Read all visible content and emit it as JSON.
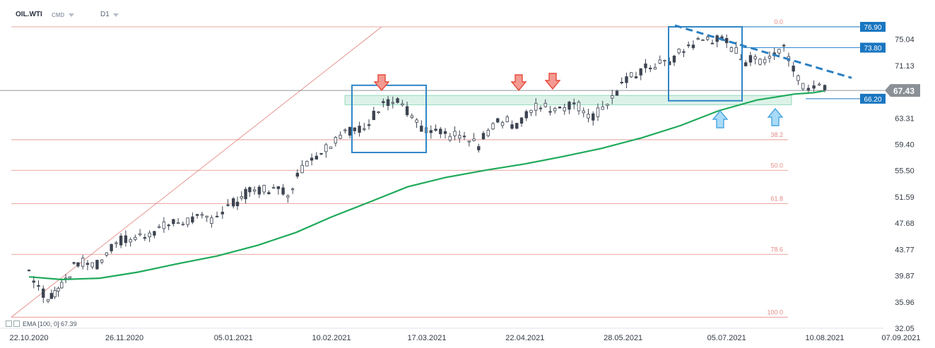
{
  "header": {
    "symbol": "OIL.WTI",
    "market": "CMD",
    "timeframe": "D1"
  },
  "indicator_legend": {
    "label": "EMA [100, 0]",
    "value": "67.39"
  },
  "colors": {
    "candle": "#3d4451",
    "ema": "#1eaa5a",
    "fib": "#e38b85",
    "box": "#2f86c6",
    "trend": "#2a7fc1",
    "arrow_down": "#e74a3b",
    "arrow_up": "#7ec3f1",
    "support_zone": "#bfe8d6",
    "price_tag": "#8a9096",
    "level_tag": "#1a76c0"
  },
  "chart_data": {
    "type": "candlestick",
    "title": "",
    "xlabel": "",
    "ylabel": "",
    "x_ticks": [
      "22.10.2020",
      "26.11.2020",
      "05.01.2021",
      "10.02.2021",
      "17.03.2021",
      "22.04.2021",
      "28.05.2021",
      "05.07.2021",
      "10.08.2021",
      "07.09.2021"
    ],
    "y_ticks": [
      75.04,
      71.13,
      67.22,
      63.31,
      59.4,
      55.5,
      51.59,
      47.68,
      43.77,
      39.87,
      35.96,
      32.05
    ],
    "ylim": [
      32.05,
      78.0
    ],
    "grid": false,
    "current_price": 67.43,
    "level_tags": [
      76.9,
      73.8,
      66.2
    ],
    "fib_levels": [
      {
        "label": "0.0",
        "value": 76.9
      },
      {
        "label": "38.2",
        "value": 60.1
      },
      {
        "label": "50.0",
        "value": 55.55
      },
      {
        "label": "61.8",
        "value": 50.6
      },
      {
        "label": "78.6",
        "value": 43.05
      },
      {
        "label": "100.0",
        "value": 33.7
      }
    ],
    "ema_series": {
      "name": "EMA [100, 0]",
      "points": [
        [
          "22.10.2020",
          39.7
        ],
        [
          "03.11.2020",
          39.3
        ],
        [
          "17.11.2020",
          39.5
        ],
        [
          "01.12.2020",
          40.4
        ],
        [
          "15.12.2020",
          41.6
        ],
        [
          "30.12.2020",
          42.8
        ],
        [
          "14.01.2021",
          44.4
        ],
        [
          "28.01.2021",
          46.3
        ],
        [
          "10.02.2021",
          48.6
        ],
        [
          "25.02.2021",
          51.0
        ],
        [
          "10.03.2021",
          53.1
        ],
        [
          "24.03.2021",
          54.5
        ],
        [
          "08.04.2021",
          55.6
        ],
        [
          "22.04.2021",
          56.5
        ],
        [
          "06.05.2021",
          57.6
        ],
        [
          "20.05.2021",
          58.8
        ],
        [
          "04.06.2021",
          60.4
        ],
        [
          "18.06.2021",
          62.2
        ],
        [
          "02.07.2021",
          64.4
        ],
        [
          "16.07.2021",
          66.0
        ],
        [
          "30.07.2021",
          66.9
        ],
        [
          "06.08.2021",
          67.1
        ],
        [
          "10.08.2021",
          67.39
        ]
      ]
    },
    "candles_close": [
      {
        "date": "22.10.2020",
        "close": 40.6
      },
      {
        "date": "29.10.2020",
        "close": 36.2
      },
      {
        "date": "03.11.2020",
        "close": 38.6
      },
      {
        "date": "09.11.2020",
        "close": 41.9
      },
      {
        "date": "16.11.2020",
        "close": 41.4
      },
      {
        "date": "23.11.2020",
        "close": 45.0
      },
      {
        "date": "30.11.2020",
        "close": 45.4
      },
      {
        "date": "07.12.2020",
        "close": 46.6
      },
      {
        "date": "14.12.2020",
        "close": 47.7
      },
      {
        "date": "21.12.2020",
        "close": 48.2
      },
      {
        "date": "28.12.2020",
        "close": 48.4
      },
      {
        "date": "05.01.2021",
        "close": 50.6
      },
      {
        "date": "11.01.2021",
        "close": 52.4
      },
      {
        "date": "18.01.2021",
        "close": 52.8
      },
      {
        "date": "25.01.2021",
        "close": 52.3
      },
      {
        "date": "01.02.2021",
        "close": 56.9
      },
      {
        "date": "08.02.2021",
        "close": 58.9
      },
      {
        "date": "15.02.2021",
        "close": 61.6
      },
      {
        "date": "22.02.2021",
        "close": 61.4
      },
      {
        "date": "01.03.2021",
        "close": 66.1
      },
      {
        "date": "08.03.2021",
        "close": 65.4
      },
      {
        "date": "15.03.2021",
        "close": 61.4
      },
      {
        "date": "22.03.2021",
        "close": 60.9
      },
      {
        "date": "29.03.2021",
        "close": 60.5
      },
      {
        "date": "05.04.2021",
        "close": 59.3
      },
      {
        "date": "12.04.2021",
        "close": 63.2
      },
      {
        "date": "19.04.2021",
        "close": 62.3
      },
      {
        "date": "26.04.2021",
        "close": 65.0
      },
      {
        "date": "03.05.2021",
        "close": 64.8
      },
      {
        "date": "10.05.2021",
        "close": 65.5
      },
      {
        "date": "17.05.2021",
        "close": 63.6
      },
      {
        "date": "24.05.2021",
        "close": 66.3
      },
      {
        "date": "31.05.2021",
        "close": 69.6
      },
      {
        "date": "07.06.2021",
        "close": 71.0
      },
      {
        "date": "14.06.2021",
        "close": 71.6
      },
      {
        "date": "21.06.2021",
        "close": 74.1
      },
      {
        "date": "28.06.2021",
        "close": 75.2
      },
      {
        "date": "05.07.2021",
        "close": 74.6
      },
      {
        "date": "12.07.2021",
        "close": 71.8
      },
      {
        "date": "19.07.2021",
        "close": 72.1
      },
      {
        "date": "26.07.2021",
        "close": 73.9
      },
      {
        "date": "02.08.2021",
        "close": 68.3
      },
      {
        "date": "10.08.2021",
        "close": 67.43
      }
    ]
  }
}
